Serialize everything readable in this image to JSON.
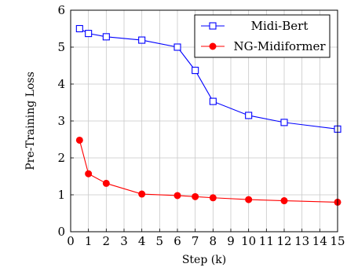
{
  "chart_data": {
    "type": "line",
    "xlabel": "Step (k)",
    "ylabel": "Pre-Training Loss",
    "xlim": [
      0,
      15
    ],
    "ylim": [
      0,
      6
    ],
    "xticks": [
      "0",
      "1",
      "2",
      "3",
      "4",
      "5",
      "6",
      "7",
      "8",
      "9",
      "10",
      "11",
      "12",
      "13",
      "14",
      "15"
    ],
    "yticks": [
      "0",
      "1",
      "2",
      "3",
      "4",
      "5",
      "6"
    ],
    "grid": true,
    "legend_position": "top-right",
    "series": [
      {
        "name": "Midi-Bert",
        "color": "#0000ff",
        "marker": "square-open",
        "x": [
          0.5,
          1,
          2,
          4,
          6,
          7,
          8,
          10,
          12,
          15
        ],
        "y": [
          5.5,
          5.37,
          5.28,
          5.19,
          5.0,
          4.37,
          3.53,
          3.15,
          2.96,
          2.78
        ]
      },
      {
        "name": "NG-Midiformer",
        "color": "#ff0000",
        "marker": "circle-filled",
        "x": [
          0.5,
          1,
          2,
          4,
          6,
          7,
          8,
          10,
          12,
          15
        ],
        "y": [
          2.48,
          1.57,
          1.31,
          1.02,
          0.98,
          0.95,
          0.92,
          0.87,
          0.84,
          0.8
        ]
      }
    ]
  }
}
